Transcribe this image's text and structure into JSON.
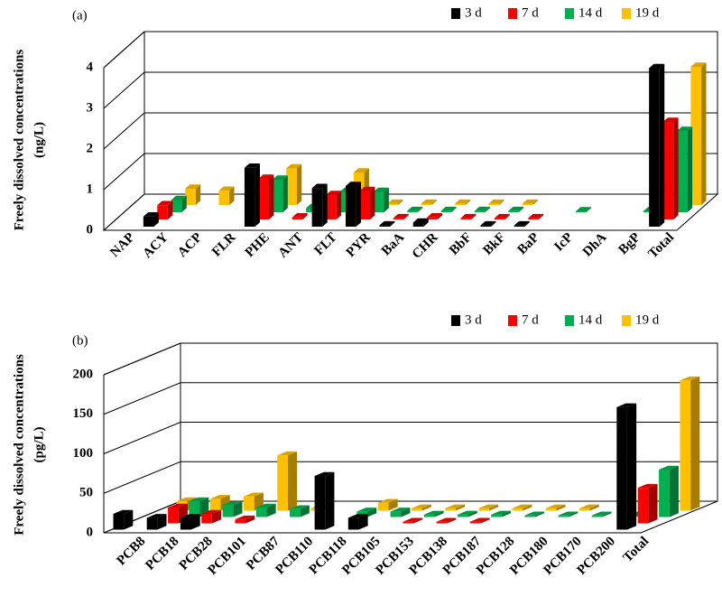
{
  "chart_data": [
    {
      "type": "bar",
      "label": "(a)",
      "ylabel": [
        "Freely dissolved concentrations",
        "(ng/L)"
      ],
      "categories": [
        "NAP",
        "ACY",
        "ACP",
        "FLR",
        "PHE",
        "ANT",
        "FLT",
        "PYR",
        "BaA",
        "CHR",
        "BbF",
        "BkF",
        "BaP",
        "IcP",
        "DhA",
        "BgP",
        "Total"
      ],
      "series": [
        {
          "name": "3 d",
          "color": "#000000",
          "values": [
            null,
            0.25,
            null,
            null,
            1.45,
            null,
            0.95,
            1.0,
            0.03,
            0.1,
            null,
            0.03,
            0.03,
            null,
            null,
            null,
            3.9
          ]
        },
        {
          "name": "7 d",
          "color": "#ff0000",
          "values": [
            null,
            0.35,
            null,
            null,
            1.0,
            0.05,
            0.6,
            0.7,
            0.03,
            0.05,
            0.03,
            0.03,
            0.03,
            null,
            null,
            null,
            2.4
          ]
        },
        {
          "name": "14 d",
          "color": "#00b050",
          "values": [
            null,
            0.3,
            null,
            null,
            0.8,
            0.1,
            0.5,
            0.5,
            0.03,
            0.03,
            0.03,
            0.03,
            null,
            0.02,
            null,
            0.02,
            2.0
          ]
        },
        {
          "name": "19 d",
          "color": "#ffc000",
          "values": [
            null,
            0.4,
            0.35,
            null,
            0.9,
            null,
            0.8,
            0.03,
            0.03,
            0.03,
            0.03,
            0.03,
            null,
            null,
            null,
            null,
            3.4
          ]
        }
      ],
      "ylim": [
        0,
        4
      ],
      "yticks": [
        0,
        1,
        2,
        3,
        4
      ],
      "grid": true,
      "legend": "top-right"
    },
    {
      "type": "bar",
      "label": "(b)",
      "ylabel": [
        "Freely dissolved concentrations",
        "(pg/L)"
      ],
      "categories": [
        "PCB8",
        "PCB18",
        "PCB28",
        "PCB101",
        "PCB87",
        "PCB110",
        "PCB118",
        "PCB105",
        "PCB153",
        "PCB138",
        "PCB187",
        "PCB128",
        "PCB180",
        "PCB170",
        "PCB200",
        "Total"
      ],
      "series": [
        {
          "name": "3 d",
          "color": "#000000",
          "values": [
            20,
            15,
            15,
            null,
            null,
            null,
            68,
            15,
            null,
            null,
            null,
            null,
            null,
            null,
            null,
            155
          ]
        },
        {
          "name": "7 d",
          "color": "#ff0000",
          "values": [
            null,
            20,
            12,
            5,
            null,
            null,
            null,
            null,
            2,
            2,
            2,
            null,
            null,
            null,
            null,
            45
          ]
        },
        {
          "name": "14 d",
          "color": "#00b050",
          "values": [
            null,
            20,
            15,
            12,
            10,
            null,
            7,
            7,
            3,
            3,
            3,
            2,
            2,
            2,
            2,
            60
          ]
        },
        {
          "name": "19 d",
          "color": "#ffc000",
          "values": [
            12,
            15,
            18,
            70,
            3,
            null,
            10,
            3,
            3,
            3,
            3,
            3,
            3,
            null,
            null,
            165
          ]
        }
      ],
      "ylim": [
        0,
        200
      ],
      "yticks": [
        0,
        50,
        100,
        150,
        200
      ],
      "grid": true,
      "legend": "top-right"
    }
  ]
}
